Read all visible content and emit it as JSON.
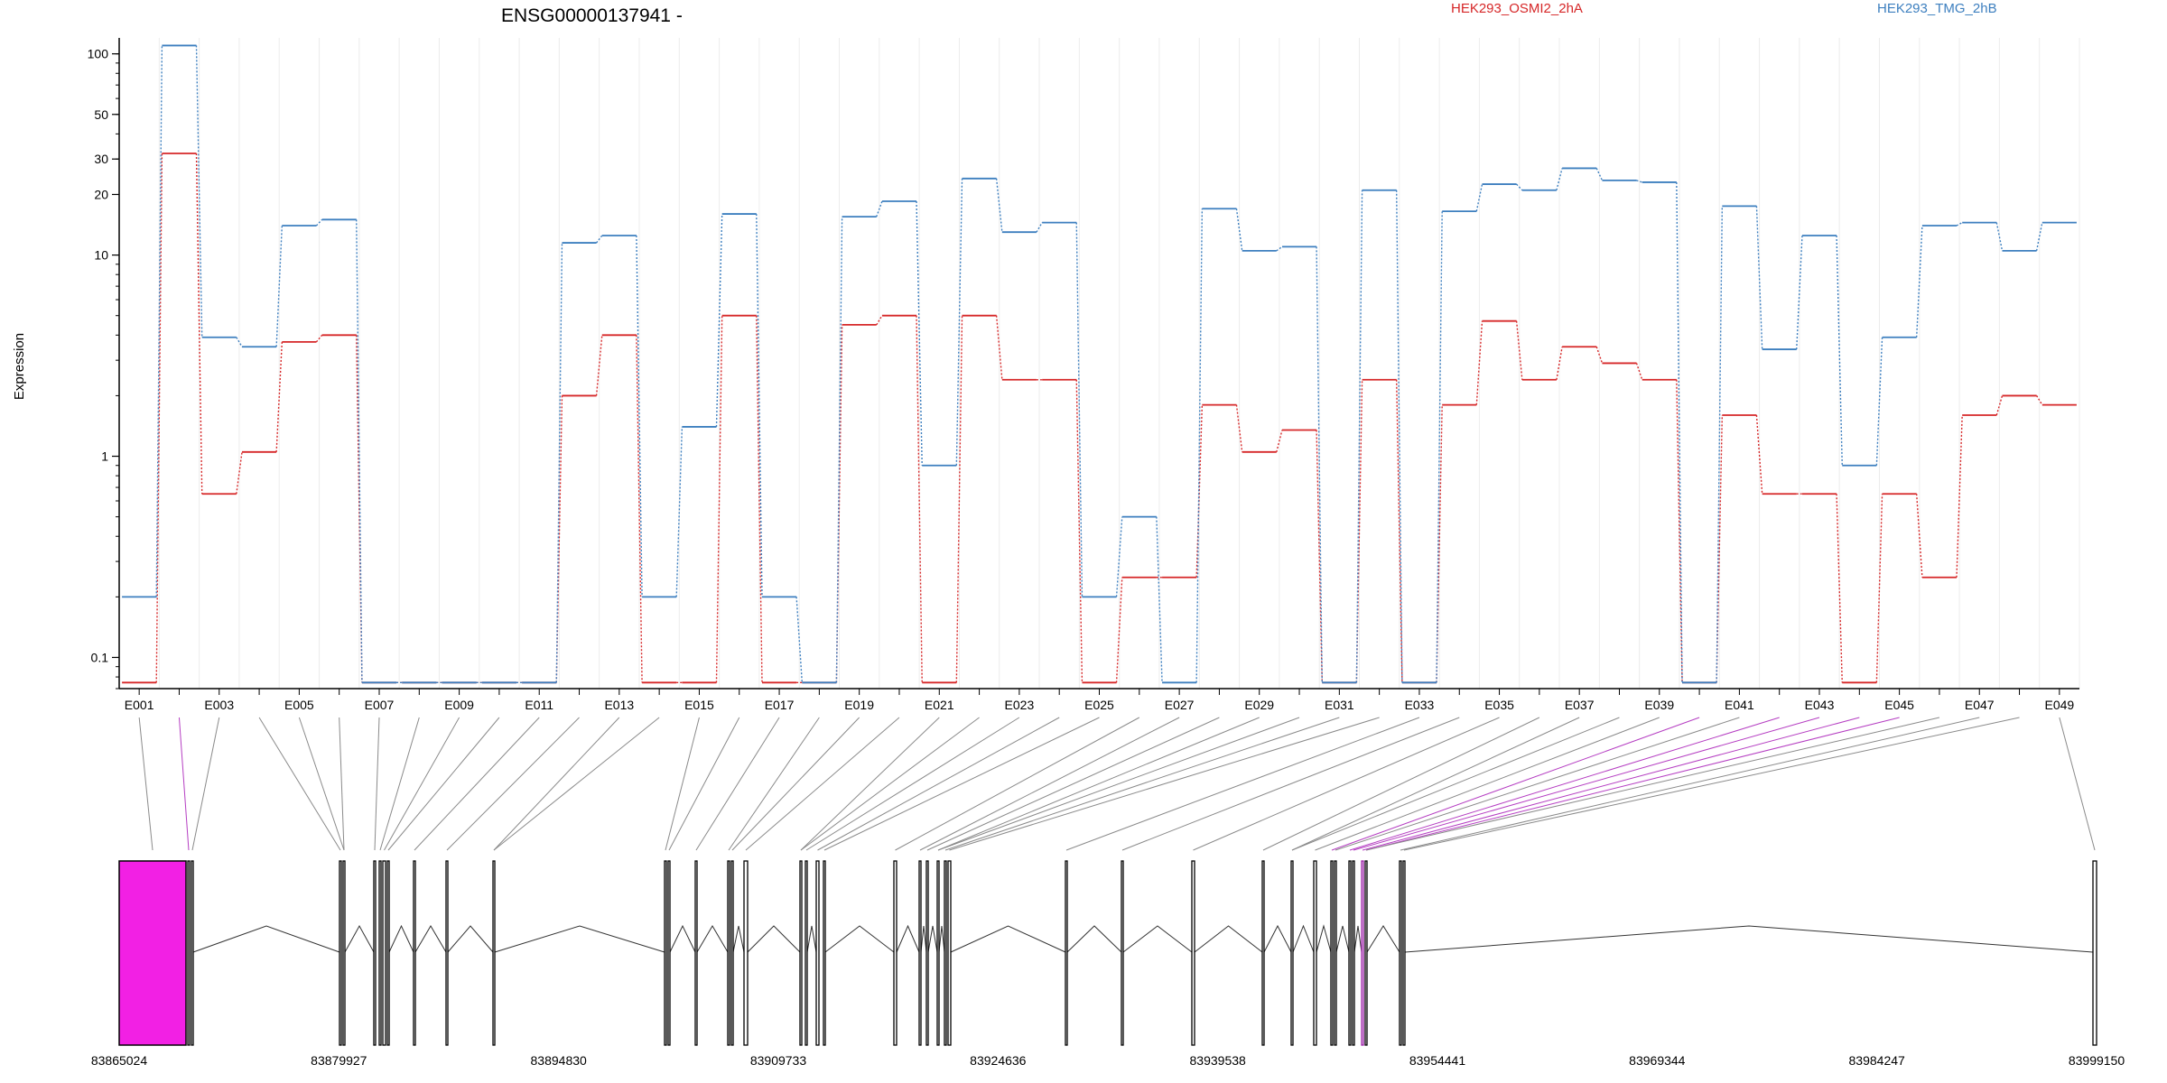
{
  "chart_data": {
    "type": "line",
    "title": "ENSG00000137941 -",
    "ylabel": "Expression",
    "y_scale": "log",
    "ylim": [
      0.07,
      120
    ],
    "y_ticks": [
      "0.1",
      "1",
      "10",
      "20",
      "30",
      "50",
      "100"
    ],
    "x_tick_labels": [
      "E001",
      "E003",
      "E005",
      "E007",
      "E009",
      "E011",
      "E013",
      "E015",
      "E017",
      "E019",
      "E021",
      "E023",
      "E025",
      "E027",
      "E029",
      "E031",
      "E033",
      "E035",
      "E037",
      "E039",
      "E041",
      "E043",
      "E045",
      "E047",
      "E049"
    ],
    "categories": [
      "E001",
      "E002",
      "E003",
      "E004",
      "E005",
      "E006",
      "E007",
      "E008",
      "E009",
      "E010",
      "E011",
      "E012",
      "E013",
      "E014",
      "E015",
      "E016",
      "E017",
      "E018",
      "E019",
      "E020",
      "E021",
      "E022",
      "E023",
      "E024",
      "E025",
      "E026",
      "E027",
      "E028",
      "E029",
      "E030",
      "E031",
      "E032",
      "E033",
      "E034",
      "E035",
      "E036",
      "E037",
      "E038",
      "E039",
      "E040",
      "E041",
      "E042",
      "E043",
      "E044",
      "E045",
      "E046",
      "E047",
      "E048",
      "E049"
    ],
    "series": [
      {
        "name": "HEK293_OSMI2_2hA",
        "color": "#d62728",
        "values": [
          0.075,
          32,
          0.65,
          1.05,
          3.7,
          4.0,
          0.075,
          0.075,
          0.075,
          0.075,
          0.075,
          2.0,
          4.0,
          0.075,
          0.075,
          5.0,
          0.075,
          0.075,
          4.5,
          5.0,
          0.075,
          5.0,
          2.4,
          2.4,
          0.075,
          0.25,
          0.25,
          1.8,
          1.05,
          1.35,
          0.075,
          2.4,
          0.075,
          1.8,
          4.7,
          2.4,
          3.5,
          2.9,
          2.4,
          0.075,
          1.6,
          0.65,
          0.65,
          0.075,
          0.65,
          0.25,
          1.6,
          2.0,
          1.8
        ]
      },
      {
        "name": "HEK293_TMG_2hB",
        "color": "#3d7fbf",
        "values": [
          0.2,
          110,
          3.9,
          3.5,
          14,
          15,
          0.075,
          0.075,
          0.075,
          0.075,
          0.075,
          11.5,
          12.5,
          0.2,
          1.4,
          16,
          0.2,
          0.075,
          15.5,
          18.5,
          0.9,
          24,
          13,
          14.5,
          0.2,
          0.5,
          0.075,
          17,
          10.5,
          11,
          0.075,
          21,
          0.075,
          16.5,
          22.5,
          21,
          27,
          23.5,
          23,
          0.075,
          17.5,
          3.4,
          12.5,
          0.9,
          3.9,
          14,
          14.5,
          10.5,
          14.5
        ]
      }
    ],
    "gene_model": {
      "start_label": "83865024",
      "coordinate_labels": [
        "83865024",
        "83879927",
        "83894830",
        "83909733",
        "83924636",
        "83939538",
        "83954441",
        "83969344",
        "83984247",
        "83999150"
      ],
      "highlight_color": "#f220e4",
      "exon_color": "#000000"
    }
  }
}
